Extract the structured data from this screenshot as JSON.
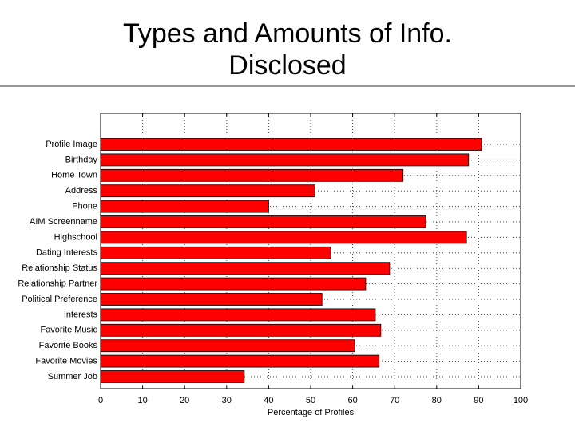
{
  "chart_data": {
    "type": "bar",
    "orientation": "horizontal",
    "title": "Types and Amounts of Info. Disclosed",
    "xlabel": "Percentage of Profiles",
    "categories": [
      "Profile Image",
      "Birthday",
      "Home Town",
      "Address",
      "Phone",
      "AIM Screenname",
      "Highschool",
      "Dating Interests",
      "Relationship Status",
      "Relationship Partner",
      "Political Preference",
      "Interests",
      "Favorite Music",
      "Favorite Books",
      "Favorite Movies",
      "Summer Job"
    ],
    "values": [
      90.7,
      87.6,
      72,
      51,
      40,
      77.4,
      87.1,
      54.8,
      68.8,
      63.1,
      52.7,
      65.4,
      66.7,
      60.5,
      66.3,
      34.2
    ],
    "color": "#ff0000",
    "xlim": [
      0,
      100
    ],
    "xticks": [
      0,
      10,
      20,
      30,
      40,
      50,
      60,
      70,
      80,
      90,
      100
    ],
    "grid": true
  }
}
